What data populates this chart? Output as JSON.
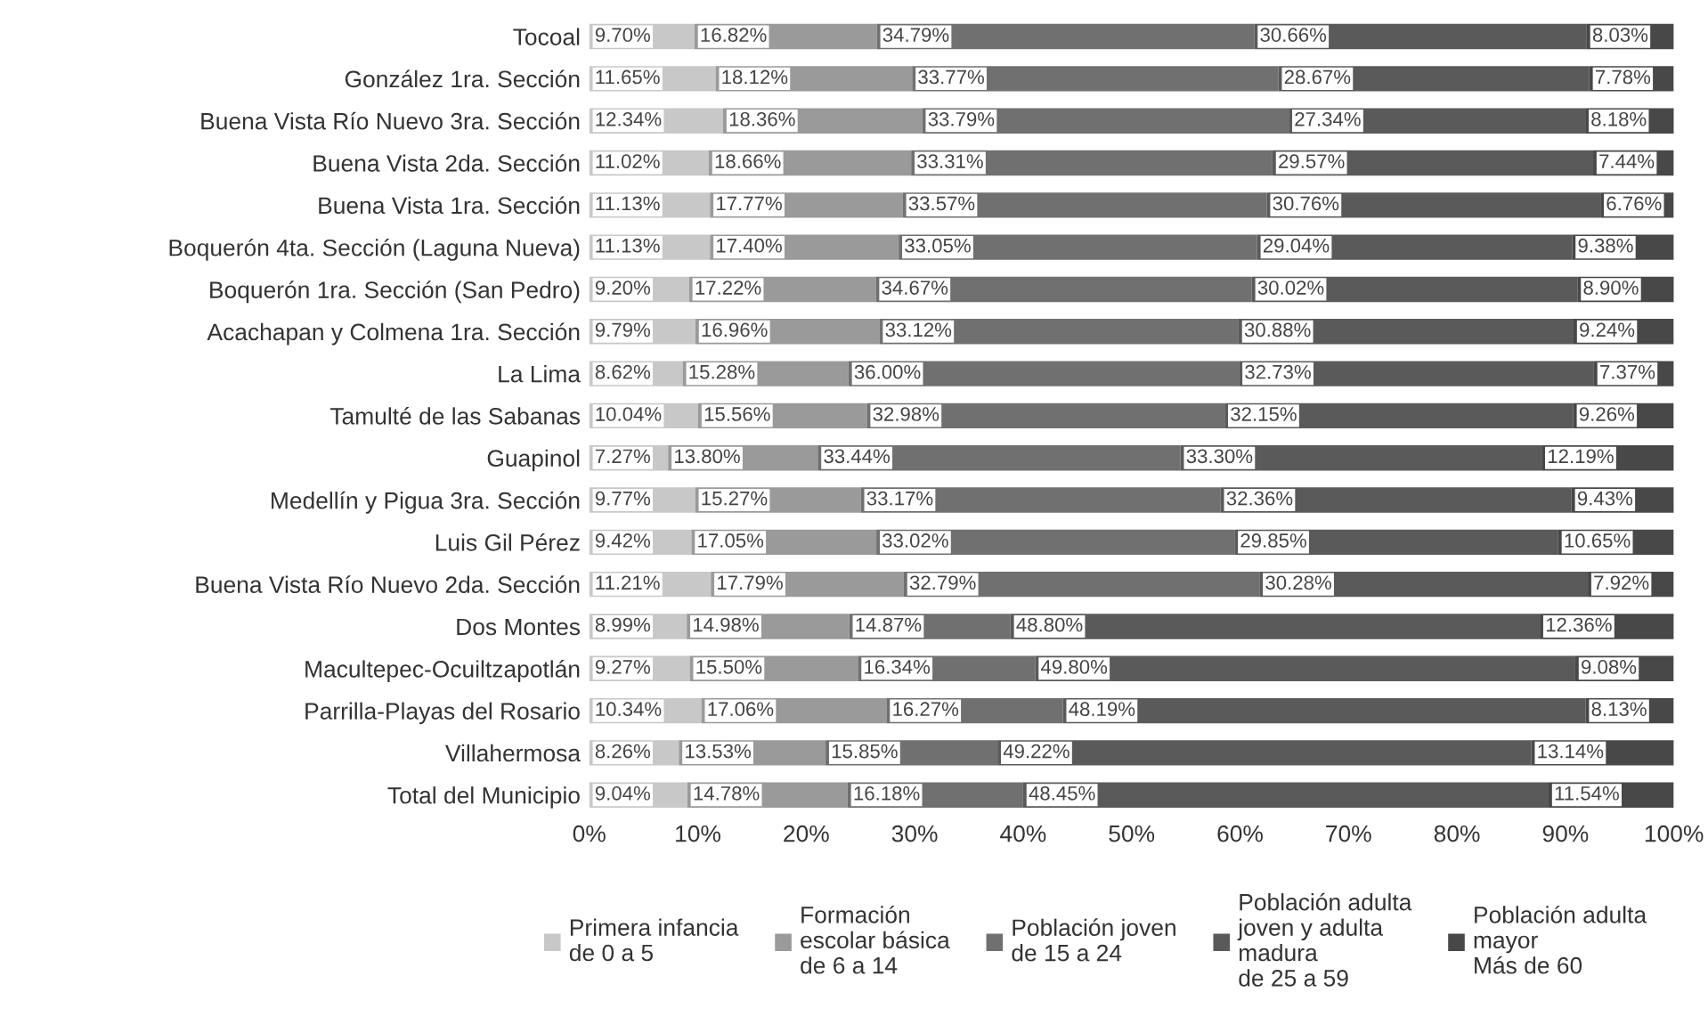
{
  "chart_data": {
    "type": "bar",
    "orientation": "horizontal",
    "stacked": true,
    "legend": "bottom",
    "grid": false,
    "categories": [
      "Tocoal",
      "González 1ra. Sección",
      "Buena Vista Río Nuevo 3ra. Sección",
      "Buena Vista 2da. Sección",
      "Buena Vista 1ra. Sección",
      "Boquerón 4ta. Sección (Laguna Nueva)",
      "Boquerón 1ra. Sección (San Pedro)",
      "Acachapan y Colmena 1ra. Sección",
      "La Lima",
      "Tamulté de las Sabanas",
      "Guapinol",
      "Medellín y Pigua 3ra. Sección",
      "Luis Gil Pérez",
      "Buena Vista Río Nuevo 2da. Sección",
      "Dos Montes",
      "Macultepec-Ocuiltzapotlán",
      "Parrilla-Playas del Rosario",
      "Villahermosa",
      "Total del Municipio"
    ],
    "xlim": [
      0,
      100
    ],
    "xticks": [
      {
        "value": 0,
        "label": "0%"
      },
      {
        "value": 10,
        "label": "10%"
      },
      {
        "value": 20,
        "label": "20%"
      },
      {
        "value": 30,
        "label": "30%"
      },
      {
        "value": 40,
        "label": "40%"
      },
      {
        "value": 50,
        "label": "50%"
      },
      {
        "value": 60,
        "label": "60%"
      },
      {
        "value": 70,
        "label": "70%"
      },
      {
        "value": 80,
        "label": "80%"
      },
      {
        "value": 90,
        "label": "90%"
      },
      {
        "value": 100,
        "label": "100%"
      }
    ],
    "series": [
      {
        "name": "Primera infancia\nde 0 a 5",
        "color": "#c8c8c8",
        "values": [
          9.7,
          11.65,
          12.34,
          11.02,
          11.13,
          11.13,
          9.2,
          9.79,
          8.62,
          10.04,
          7.27,
          9.77,
          9.42,
          11.21,
          8.99,
          9.27,
          10.34,
          8.26,
          9.04
        ],
        "value_labels": [
          "9.70%",
          "11.65%",
          "12.34%",
          "11.02%",
          "11.13%",
          "11.13%",
          "9.20%",
          "9.79%",
          "8.62%",
          "10.04%",
          "7.27%",
          "9.77%",
          "9.42%",
          "11.21%",
          "8.99%",
          "9.27%",
          "10.34%",
          "8.26%",
          "9.04%"
        ]
      },
      {
        "name": "Formación\nescolar básica\nde 6 a 14",
        "color": "#9a9a9a",
        "values": [
          16.82,
          18.12,
          18.36,
          18.66,
          17.77,
          17.4,
          17.22,
          16.96,
          15.28,
          15.56,
          13.8,
          15.27,
          17.05,
          17.79,
          14.98,
          15.5,
          17.06,
          13.53,
          14.78
        ],
        "value_labels": [
          "16.82%",
          "18.12%",
          "18.36%",
          "18.66%",
          "17.77%",
          "17.40%",
          "17.22%",
          "16.96%",
          "15.28%",
          "15.56%",
          "13.80%",
          "15.27%",
          "17.05%",
          "17.79%",
          "14.98%",
          "15.50%",
          "17.06%",
          "13.53%",
          "14.78%"
        ]
      },
      {
        "name": "Población joven\nde 15 a 24",
        "color": "#707070",
        "values": [
          34.79,
          33.77,
          33.79,
          33.31,
          33.57,
          33.05,
          34.67,
          33.12,
          36.0,
          32.98,
          33.44,
          33.17,
          33.02,
          32.79,
          14.87,
          16.34,
          16.27,
          15.85,
          16.18
        ],
        "value_labels": [
          "34.79%",
          "33.77%",
          "33.79%",
          "33.31%",
          "33.57%",
          "33.05%",
          "34.67%",
          "33.12%",
          "36.00%",
          "32.98%",
          "33.44%",
          "33.17%",
          "33.02%",
          "32.79%",
          "14.87%",
          "16.34%",
          "16.27%",
          "15.85%",
          "16.18%"
        ]
      },
      {
        "name": "Población adulta\njoven y adulta\nmadura\nde 25 a 59",
        "color": "#5a5a5a",
        "values": [
          30.66,
          28.67,
          27.34,
          29.57,
          30.76,
          29.04,
          30.02,
          30.88,
          32.73,
          32.15,
          33.3,
          32.36,
          29.85,
          30.28,
          48.8,
          49.8,
          48.19,
          49.22,
          48.45
        ],
        "value_labels": [
          "30.66%",
          "28.67%",
          "27.34%",
          "29.57%",
          "30.76%",
          "29.04%",
          "30.02%",
          "30.88%",
          "32.73%",
          "32.15%",
          "33.30%",
          "32.36%",
          "29.85%",
          "30.28%",
          "48.80%",
          "49.80%",
          "48.19%",
          "49.22%",
          "48.45%"
        ]
      },
      {
        "name": "Población adulta\nmayor\nMás de 60",
        "color": "#484848",
        "values": [
          8.03,
          7.78,
          8.18,
          7.44,
          6.76,
          9.38,
          8.9,
          9.24,
          7.37,
          9.26,
          12.19,
          9.43,
          10.65,
          7.92,
          12.36,
          9.08,
          8.13,
          13.14,
          11.54
        ],
        "value_labels": [
          "8.03%",
          "7.78%",
          "8.18%",
          "7.44%",
          "6.76%",
          "9.38%",
          "8.90%",
          "9.24%",
          "7.37%",
          "9.26%",
          "12.19%",
          "9.43%",
          "10.65%",
          "7.92%",
          "12.36%",
          "9.08%",
          "8.13%",
          "13.14%",
          "11.54%"
        ]
      }
    ]
  }
}
